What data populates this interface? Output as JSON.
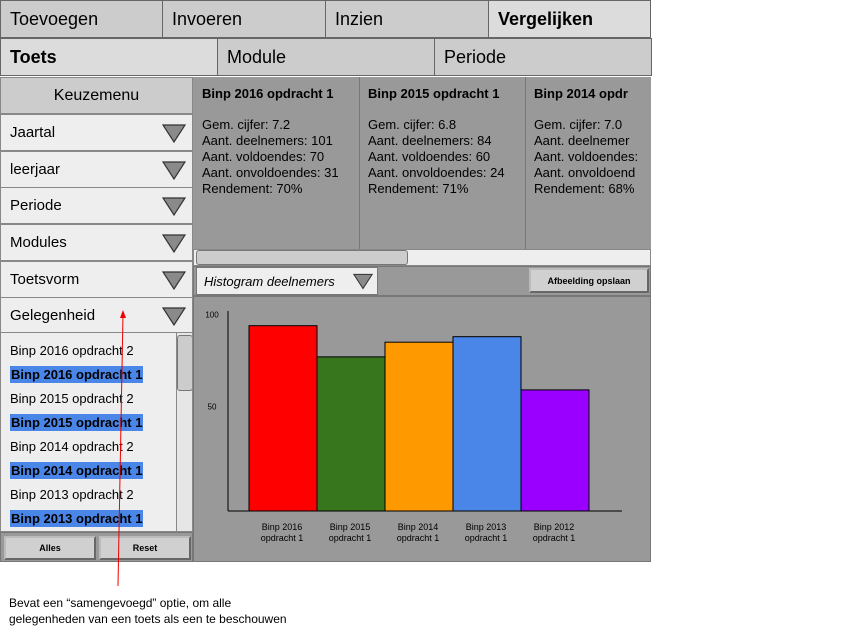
{
  "top_tabs": [
    {
      "label": "Toevoegen"
    },
    {
      "label": "Invoeren"
    },
    {
      "label": "Inzien"
    },
    {
      "label": "Vergelijken"
    }
  ],
  "sub_tabs": [
    {
      "label": "Toets"
    },
    {
      "label": "Module"
    },
    {
      "label": "Periode"
    }
  ],
  "sidebar": {
    "title": "Keuzemenu",
    "dropdowns": [
      {
        "label": "Jaartal"
      },
      {
        "label": "leerjaar"
      },
      {
        "label": "Periode"
      },
      {
        "label": "Modules"
      },
      {
        "label": "Toetsvorm"
      },
      {
        "label": "Gelegenheid"
      }
    ],
    "items": [
      {
        "label": "Binp 2016 opdracht 2",
        "selected": false
      },
      {
        "label": "Binp 2016 opdracht 1",
        "selected": true
      },
      {
        "label": "Binp 2015 opdracht 2",
        "selected": false
      },
      {
        "label": "Binp 2015 opdracht 1",
        "selected": true
      },
      {
        "label": "Binp 2014 opdracht 2",
        "selected": false
      },
      {
        "label": "Binp 2014 opdracht 1",
        "selected": true
      },
      {
        "label": "Binp 2013 opdracht 2",
        "selected": false
      },
      {
        "label": "Binp 2013 opdracht 1",
        "selected": true
      }
    ],
    "buttons": {
      "all": "Alles",
      "reset": "Reset"
    }
  },
  "cards": [
    {
      "title": "Binp 2016 opdracht 1",
      "lines": [
        "Gem. cijfer: 7.2",
        "Aant. deelnemers: 101",
        "Aant. voldoendes: 70",
        "Aant. onvoldoendes: 31",
        "Rendement: 70%"
      ]
    },
    {
      "title": "Binp 2015 opdracht 1",
      "lines": [
        "Gem. cijfer: 6.8",
        "Aant. deelnemers: 84",
        "Aant. voldoendes: 60",
        "Aant. onvoldoendes: 24",
        "Rendement: 71%"
      ]
    },
    {
      "title": "Binp 2014 opdr",
      "lines": [
        "Gem. cijfer: 7.0",
        "Aant. deelnemer",
        "Aant. voldoendes:",
        "Aant. onvoldoend",
        "Rendement: 68%"
      ]
    }
  ],
  "chart_select": {
    "value": "Histogram deelnemers"
  },
  "save_button": "Afbeelding opslaan",
  "colors": {
    "selected": "#4a86e8",
    "panel": "#999999"
  },
  "chart_data": {
    "type": "bar",
    "categories": [
      "Binp 2016\nopdracht 1",
      "Binp 2015\nopdracht 1",
      "Binp 2014\nopdracht 1",
      "Binp 2013\nopdracht 1",
      "Binp 2012\nopdracht 1"
    ],
    "values": [
      101,
      84,
      92,
      95,
      66
    ],
    "colors": [
      "#ff0000",
      "#38761d",
      "#ff9900",
      "#4a86e8",
      "#9900ff"
    ],
    "yticks": [
      50,
      100
    ],
    "ylim": [
      0,
      109
    ],
    "grid": false,
    "legend": "none"
  },
  "annotation": {
    "line1": "Bevat een “samengevoegd” optie, om alle",
    "line2": "gelegenheden van een toets als een te beschouwen"
  }
}
